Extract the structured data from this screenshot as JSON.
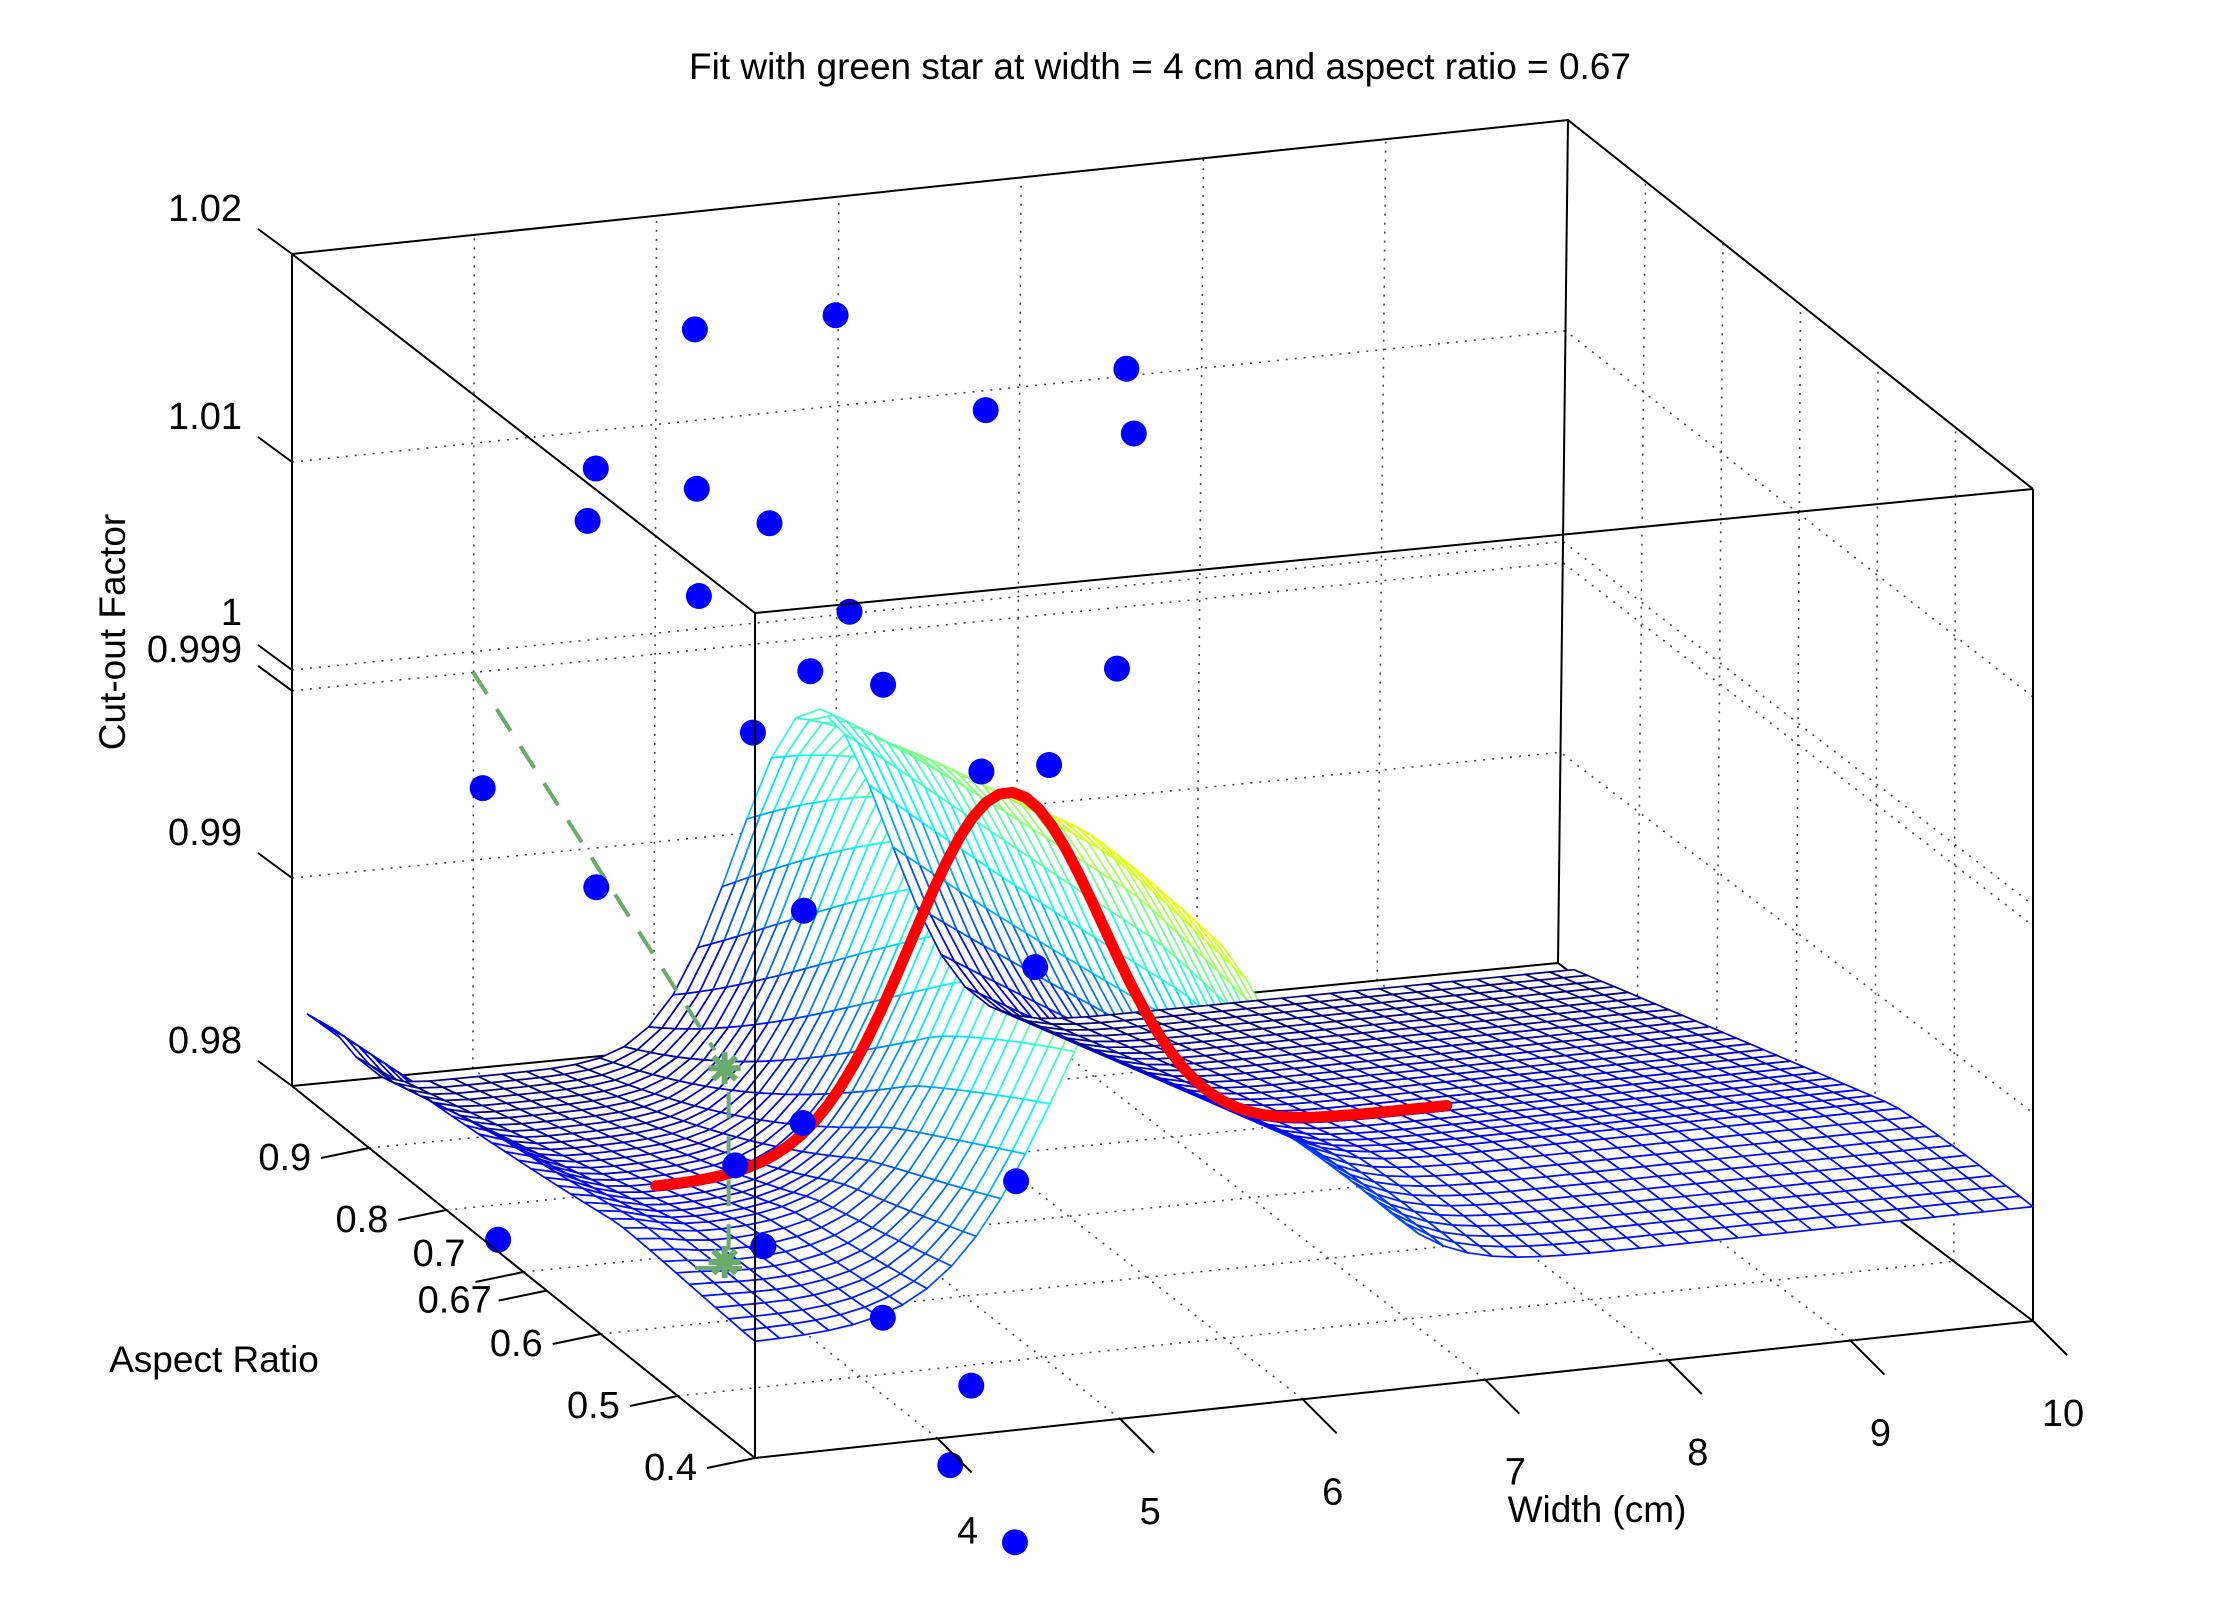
{
  "chart_data": {
    "type": "surface",
    "title": "Fit with green star at width = 4 cm and aspect ratio = 0.67",
    "xlabel": "Width (cm)",
    "ylabel": "Aspect Ratio",
    "zlabel": "Cut-out Factor",
    "x_ticks": [
      "4",
      "5",
      "6",
      "7",
      "8",
      "9",
      "10"
    ],
    "y_ticks": [
      "0.4",
      "0.5",
      "0.6",
      "0.67",
      "0.7",
      "0.8",
      "0.9"
    ],
    "z_ticks": [
      "0.98",
      "0.99",
      "0.999",
      "1",
      "1.01",
      "1.02"
    ],
    "xlim": [
      3,
      10
    ],
    "ylim": [
      0.4,
      1.0
    ],
    "zlim": [
      0.98,
      1.02
    ],
    "grid": true,
    "colormap": "jet",
    "marker_color": "#0000ff",
    "highlight_line_color": "#ff0000",
    "guide_color": "#6aaa6a",
    "star_point": {
      "width": 4,
      "aspect_ratio": 0.67,
      "cutout_factor": 0.99
    },
    "highlight_line_aspect_ratio": 0.67,
    "measured_points": [
      {
        "width": 5.0,
        "aspect_ratio": 0.95,
        "factor": 1.016
      },
      {
        "width": 5.9,
        "aspect_ratio": 0.98,
        "factor": 1.015
      },
      {
        "width": 6.3,
        "aspect_ratio": 0.88,
        "factor": 1.013
      },
      {
        "width": 7.5,
        "aspect_ratio": 0.98,
        "factor": 1.011
      },
      {
        "width": 7.2,
        "aspect_ratio": 0.9,
        "factor": 1.0105
      },
      {
        "width": 4.8,
        "aspect_ratio": 0.9,
        "factor": 1.01
      },
      {
        "width": 4.5,
        "aspect_ratio": 0.96,
        "factor": 1.0095
      },
      {
        "width": 4.2,
        "aspect_ratio": 0.9,
        "factor": 1.009
      },
      {
        "width": 5.2,
        "aspect_ratio": 0.9,
        "factor": 1.008
      },
      {
        "width": 4.6,
        "aspect_ratio": 0.85,
        "factor": 1.0065
      },
      {
        "width": 5.3,
        "aspect_ratio": 0.82,
        "factor": 1.006
      },
      {
        "width": 5.0,
        "aspect_ratio": 0.8,
        "factor": 1.004
      },
      {
        "width": 5.4,
        "aspect_ratio": 0.8,
        "factor": 1.003
      },
      {
        "width": 4.6,
        "aspect_ratio": 0.78,
        "factor": 1.002
      },
      {
        "width": 6.9,
        "aspect_ratio": 0.85,
        "factor": 1.001
      },
      {
        "width": 5.6,
        "aspect_ratio": 0.72,
        "factor": 1.001
      },
      {
        "width": 6.1,
        "aspect_ratio": 0.75,
        "factor": 1.0
      },
      {
        "width": 3.2,
        "aspect_ratio": 0.8,
        "factor": 1.0
      },
      {
        "width": 4.2,
        "aspect_ratio": 0.62,
        "factor": 0.9985
      },
      {
        "width": 3.4,
        "aspect_ratio": 0.7,
        "factor": 0.998
      },
      {
        "width": 5.3,
        "aspect_ratio": 0.58,
        "factor": 0.996
      },
      {
        "width": 3.6,
        "aspect_ratio": 0.48,
        "factor": 0.993
      },
      {
        "width": 4.6,
        "aspect_ratio": 0.44,
        "factor": 0.9905
      },
      {
        "width": 3.4,
        "aspect_ratio": 0.52,
        "factor": 0.99
      },
      {
        "width": 3.3,
        "aspect_ratio": 0.46,
        "factor": 0.988
      },
      {
        "width": 3.7,
        "aspect_ratio": 0.4,
        "factor": 0.986
      },
      {
        "width": 4.1,
        "aspect_ratio": 0.38,
        "factor": 0.983
      },
      {
        "width": 3.2,
        "aspect_ratio": 0.78,
        "factor": 0.979
      },
      {
        "width": 3.9,
        "aspect_ratio": 0.36,
        "factor": 0.98
      },
      {
        "width": 4.0,
        "aspect_ratio": 0.3,
        "factor": 0.978
      }
    ]
  }
}
